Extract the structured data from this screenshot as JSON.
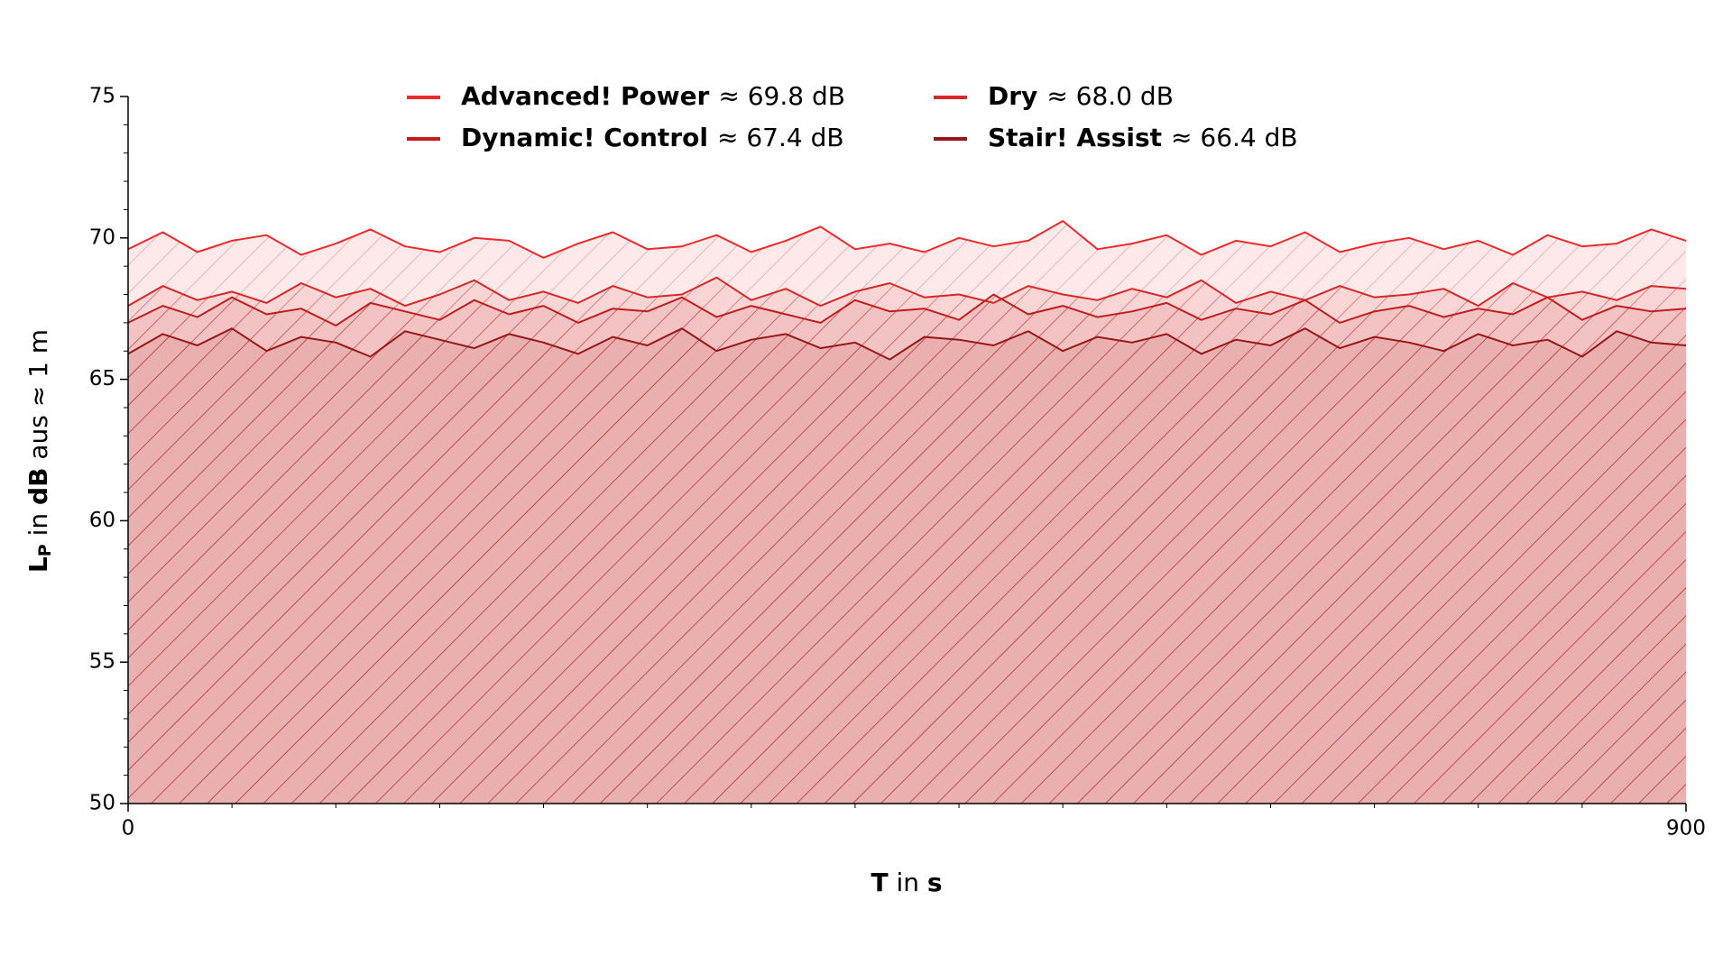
{
  "chart_data": {
    "type": "line",
    "x_label_parts": [
      "T",
      " in ",
      "s"
    ],
    "y_label_parts": [
      "L",
      "P",
      " in ",
      "dB",
      " aus ≈ 1 m"
    ],
    "x": [
      0,
      20,
      40,
      60,
      80,
      100,
      120,
      140,
      160,
      180,
      200,
      220,
      240,
      260,
      280,
      300,
      320,
      340,
      360,
      380,
      400,
      420,
      440,
      460,
      480,
      500,
      520,
      540,
      560,
      580,
      600,
      620,
      640,
      660,
      680,
      700,
      720,
      740,
      760,
      780,
      800,
      820,
      840,
      860,
      880,
      900
    ],
    "series": [
      {
        "name": "Advanced! Power",
        "mean_label": "≈ 69.8 dB",
        "color": "#ee2a2a",
        "values": [
          69.6,
          70.2,
          69.5,
          69.9,
          70.1,
          69.4,
          69.8,
          70.3,
          69.7,
          69.5,
          70.0,
          69.9,
          69.3,
          69.8,
          70.2,
          69.6,
          69.7,
          70.1,
          69.5,
          69.9,
          70.4,
          69.6,
          69.8,
          69.5,
          70.0,
          69.7,
          69.9,
          70.6,
          69.6,
          69.8,
          70.1,
          69.4,
          69.9,
          69.7,
          70.2,
          69.5,
          69.8,
          70.0,
          69.6,
          69.9,
          69.4,
          70.1,
          69.7,
          69.8,
          70.3,
          69.9
        ]
      },
      {
        "name": "Dry",
        "mean_label": "≈ 68.0 dB",
        "color": "#d92626",
        "values": [
          67.6,
          68.3,
          67.8,
          68.1,
          67.7,
          68.4,
          67.9,
          68.2,
          67.6,
          68.0,
          68.5,
          67.8,
          68.1,
          67.7,
          68.3,
          67.9,
          68.0,
          68.6,
          67.8,
          68.2,
          67.6,
          68.1,
          68.4,
          67.9,
          68.0,
          67.7,
          68.3,
          68.0,
          67.8,
          68.2,
          67.9,
          68.5,
          67.7,
          68.1,
          67.8,
          68.3,
          67.9,
          68.0,
          68.2,
          67.6,
          68.4,
          67.9,
          68.1,
          67.8,
          68.3,
          68.2
        ]
      },
      {
        "name": "Dynamic! Control",
        "mean_label": "≈ 67.4 dB",
        "color": "#c21d1d",
        "values": [
          67.0,
          67.6,
          67.2,
          67.9,
          67.3,
          67.5,
          66.9,
          67.7,
          67.4,
          67.1,
          67.8,
          67.3,
          67.6,
          67.0,
          67.5,
          67.4,
          67.9,
          67.2,
          67.6,
          67.3,
          67.0,
          67.8,
          67.4,
          67.5,
          67.1,
          68.0,
          67.3,
          67.6,
          67.2,
          67.4,
          67.7,
          67.1,
          67.5,
          67.3,
          67.8,
          67.0,
          67.4,
          67.6,
          67.2,
          67.5,
          67.3,
          67.9,
          67.1,
          67.6,
          67.4,
          67.5
        ]
      },
      {
        "name": "Stair! Assist",
        "mean_label": "≈ 66.4 dB",
        "color": "#9a1616",
        "values": [
          65.9,
          66.6,
          66.2,
          66.8,
          66.0,
          66.5,
          66.3,
          65.8,
          66.7,
          66.4,
          66.1,
          66.6,
          66.3,
          65.9,
          66.5,
          66.2,
          66.8,
          66.0,
          66.4,
          66.6,
          66.1,
          66.3,
          65.7,
          66.5,
          66.4,
          66.2,
          66.7,
          66.0,
          66.5,
          66.3,
          66.6,
          65.9,
          66.4,
          66.2,
          66.8,
          66.1,
          66.5,
          66.3,
          66.0,
          66.6,
          66.2,
          66.4,
          65.8,
          66.7,
          66.3,
          66.2
        ]
      }
    ],
    "xlim": [
      0,
      900
    ],
    "xticks": [
      0,
      900
    ],
    "xminorticks": [
      60,
      120,
      180,
      240,
      300,
      360,
      420,
      480,
      540,
      600,
      660,
      720,
      780,
      840
    ],
    "ylim": [
      50,
      75
    ],
    "yticks": [
      50,
      55,
      60,
      65,
      70,
      75
    ],
    "yminorticks": [
      51,
      52,
      53,
      54,
      56,
      57,
      58,
      59,
      61,
      62,
      63,
      64,
      66,
      67,
      68,
      69,
      71,
      72,
      73,
      74
    ],
    "area_fill": true,
    "hatch": true,
    "legend": "top"
  }
}
